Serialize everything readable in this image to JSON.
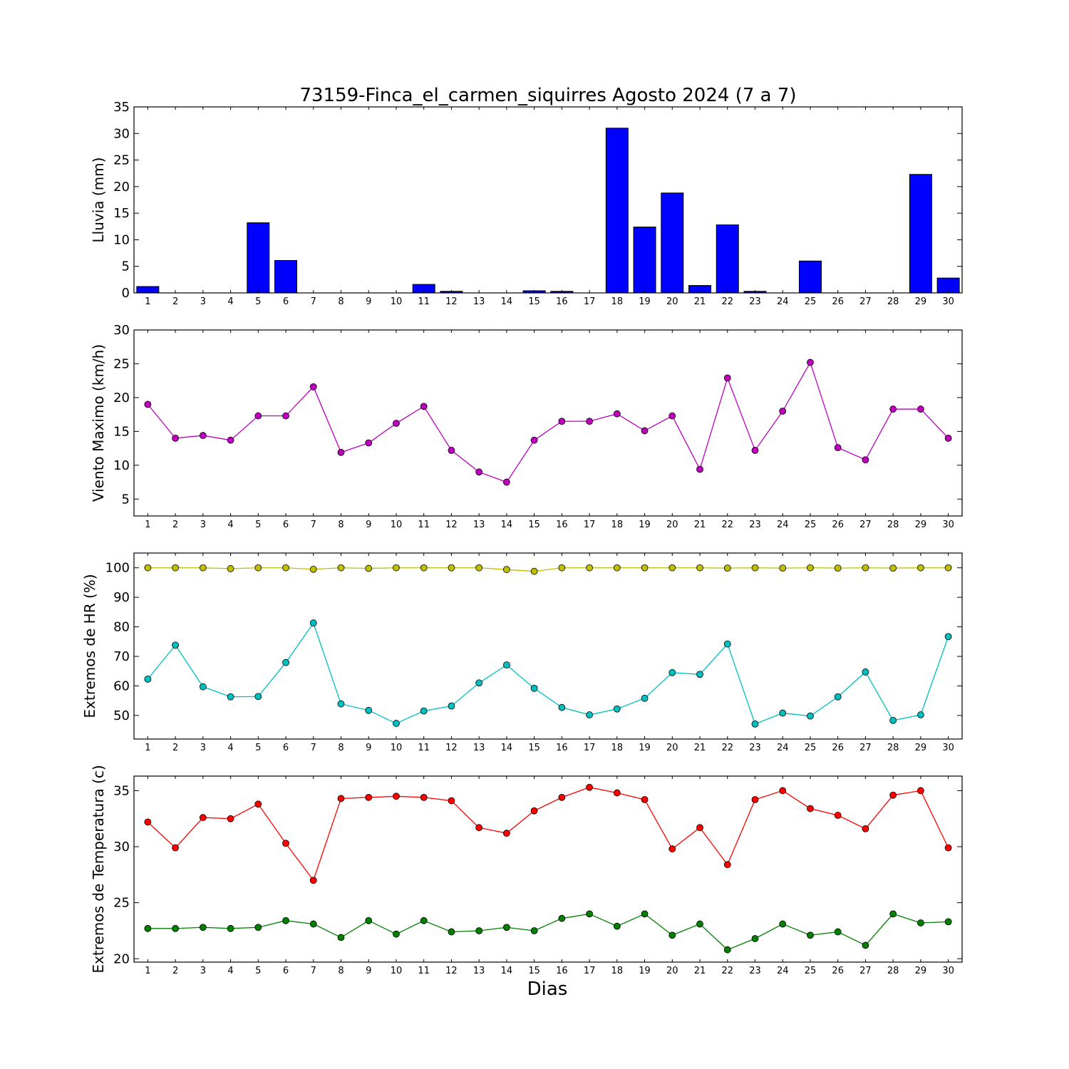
{
  "chart_data": [
    {
      "type": "bar",
      "title": "73159-Finca_el_carmen_siquirres Agosto 2024  (7 a 7)",
      "ylabel": "Lluvia (mm)",
      "xlabel": "",
      "categories": [
        1,
        2,
        3,
        4,
        5,
        6,
        7,
        8,
        9,
        10,
        11,
        12,
        13,
        14,
        15,
        16,
        17,
        18,
        19,
        20,
        21,
        22,
        23,
        24,
        25,
        26,
        27,
        28,
        29,
        30
      ],
      "ylim": [
        0,
        35
      ],
      "yticks": [
        0,
        5,
        10,
        15,
        20,
        25,
        30,
        35
      ],
      "series": [
        {
          "color": "#0000ff",
          "values": [
            1.2,
            0,
            0,
            0,
            13.2,
            6.1,
            0,
            0,
            0,
            0,
            1.6,
            0.3,
            0,
            0,
            0.4,
            0.3,
            0,
            31.0,
            12.4,
            18.8,
            1.4,
            12.8,
            0.3,
            0,
            6.0,
            0,
            0,
            0,
            22.3,
            2.8
          ]
        }
      ]
    },
    {
      "type": "line",
      "title": "",
      "ylabel": "Viento Maximo (km/h)",
      "xlabel": "",
      "categories": [
        1,
        2,
        3,
        4,
        5,
        6,
        7,
        8,
        9,
        10,
        11,
        12,
        13,
        14,
        15,
        16,
        17,
        18,
        19,
        20,
        21,
        22,
        23,
        24,
        25,
        26,
        27,
        28,
        29,
        30
      ],
      "ylim": [
        2.5,
        30
      ],
      "yticks": [
        5,
        10,
        15,
        20,
        25,
        30
      ],
      "series": [
        {
          "color": "#bf00bf",
          "values": [
            19.0,
            14.0,
            14.4,
            13.7,
            17.3,
            17.3,
            21.6,
            11.9,
            13.3,
            16.2,
            18.7,
            12.2,
            9.0,
            7.5,
            13.7,
            16.5,
            16.5,
            17.6,
            15.1,
            17.3,
            9.4,
            22.9,
            12.2,
            18.0,
            25.2,
            12.6,
            10.8,
            18.3,
            18.3,
            14.0
          ]
        }
      ]
    },
    {
      "type": "line",
      "title": "",
      "ylabel": "Extremos de HR (%)",
      "xlabel": "",
      "categories": [
        1,
        2,
        3,
        4,
        5,
        6,
        7,
        8,
        9,
        10,
        11,
        12,
        13,
        14,
        15,
        16,
        17,
        18,
        19,
        20,
        21,
        22,
        23,
        24,
        25,
        26,
        27,
        28,
        29,
        30
      ],
      "ylim": [
        42,
        105
      ],
      "yticks": [
        50,
        60,
        70,
        80,
        90,
        100
      ],
      "series": [
        {
          "color": "#bfbf00",
          "values": [
            100,
            100,
            100,
            99.7,
            100,
            100,
            99.5,
            100,
            99.8,
            100,
            100,
            100,
            100,
            99.4,
            98.8,
            100,
            100,
            100,
            100,
            100,
            100,
            99.9,
            100,
            99.9,
            100,
            99.9,
            100,
            99.9,
            100,
            100
          ]
        },
        {
          "color": "#00bfbf",
          "values": [
            62.3,
            73.8,
            59.7,
            56.3,
            56.4,
            67.9,
            81.3,
            53.9,
            51.7,
            47.3,
            51.5,
            53.2,
            61.0,
            67.1,
            59.2,
            52.7,
            50.2,
            52.2,
            55.8,
            64.5,
            63.9,
            74.2,
            47.1,
            50.8,
            49.8,
            56.3,
            64.7,
            48.3,
            50.2,
            76.7
          ]
        }
      ]
    },
    {
      "type": "line",
      "title": "",
      "ylabel": "Extremos de Temperatura (c)",
      "xlabel": "Dias",
      "categories": [
        1,
        2,
        3,
        4,
        5,
        6,
        7,
        8,
        9,
        10,
        11,
        12,
        13,
        14,
        15,
        16,
        17,
        18,
        19,
        20,
        21,
        22,
        23,
        24,
        25,
        26,
        27,
        28,
        29,
        30
      ],
      "ylim": [
        19.7,
        36.3
      ],
      "yticks": [
        20,
        25,
        30,
        35
      ],
      "series": [
        {
          "color": "#ff0000",
          "values": [
            32.2,
            29.9,
            32.6,
            32.5,
            33.8,
            30.3,
            27.0,
            34.3,
            34.4,
            34.5,
            34.4,
            34.1,
            31.7,
            31.2,
            33.2,
            34.4,
            35.3,
            34.8,
            34.2,
            29.8,
            31.7,
            28.4,
            34.2,
            35.0,
            33.4,
            32.8,
            31.6,
            34.6,
            35.0,
            29.9
          ]
        },
        {
          "color": "#007f00",
          "values": [
            22.7,
            22.7,
            22.8,
            22.7,
            22.8,
            23.4,
            23.1,
            21.9,
            23.4,
            22.2,
            23.4,
            22.4,
            22.5,
            22.8,
            22.5,
            23.6,
            24.0,
            22.9,
            24.0,
            22.1,
            23.1,
            20.8,
            21.8,
            23.1,
            22.1,
            22.4,
            21.2,
            24.0,
            23.2,
            23.3
          ]
        }
      ]
    }
  ]
}
